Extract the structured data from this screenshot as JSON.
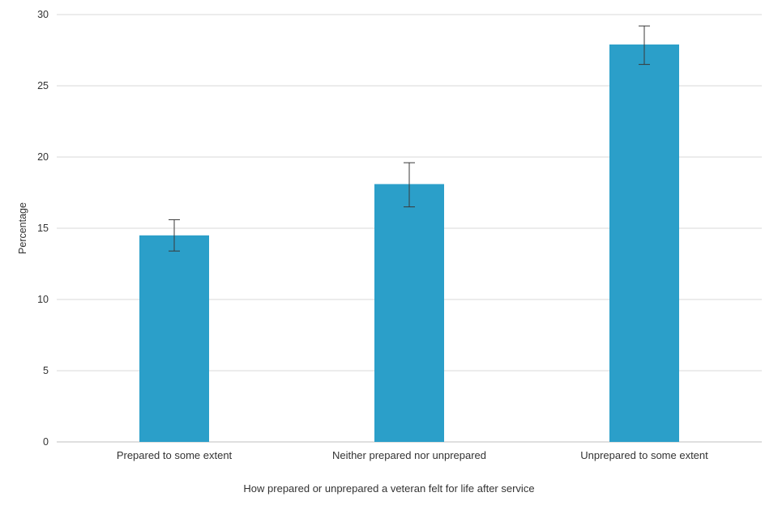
{
  "chart_data": {
    "type": "bar",
    "title": "",
    "xlabel": "How prepared or unprepared a veteran felt for life after service",
    "ylabel": "Percentage",
    "categories": [
      "Prepared to some extent",
      "Neither prepared nor unprepared",
      "Unprepared to some extent"
    ],
    "values": [
      14.5,
      18.1,
      27.9
    ],
    "error_low": [
      13.4,
      16.5,
      26.5
    ],
    "error_high": [
      15.6,
      19.6,
      29.2
    ],
    "ylim": [
      0,
      30
    ],
    "yticks": [
      0,
      5,
      10,
      15,
      20,
      25,
      30
    ],
    "grid": true,
    "legend": false,
    "bar_color": "#2b9fc9",
    "errorbar_color": "#3a3a3a",
    "gridline_color": "#d9d9d9",
    "axis_line_color": "#bfbfbf",
    "text_color": "#333333"
  }
}
